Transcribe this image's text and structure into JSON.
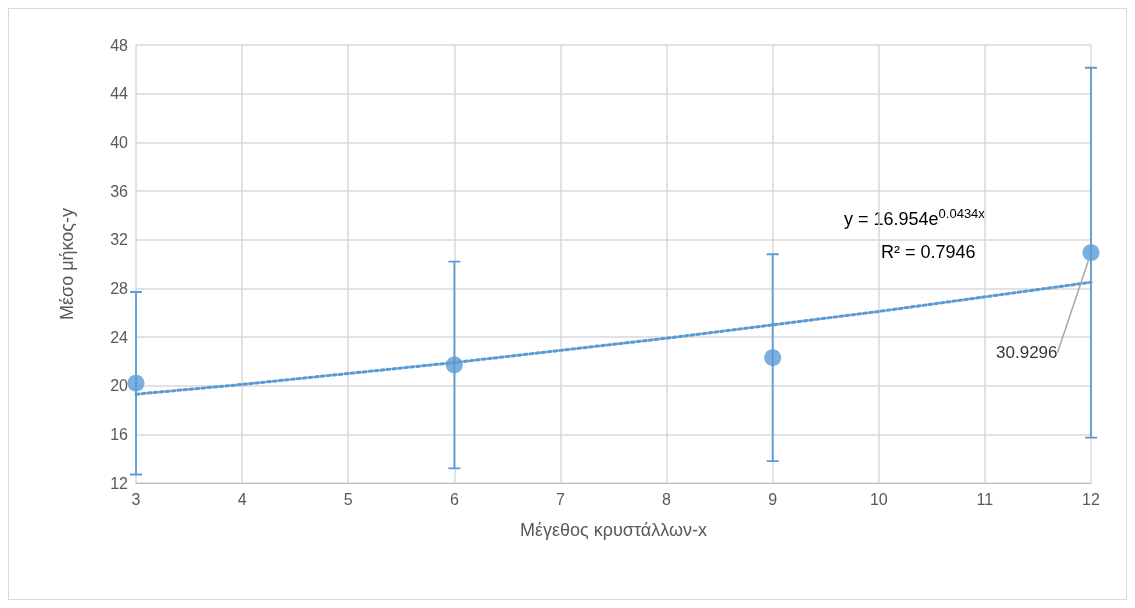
{
  "chart_data": {
    "type": "scatter",
    "xlabel": "Μέγεθος κρυστάλλων-x",
    "ylabel": "Μέσο μήκος-y",
    "xlim": [
      3,
      12
    ],
    "xticks": [
      3,
      4,
      5,
      6,
      7,
      8,
      9,
      10,
      11,
      12
    ],
    "ylim": [
      12,
      48
    ],
    "yticks": [
      12,
      16,
      20,
      24,
      28,
      32,
      36,
      40,
      44,
      48
    ],
    "grid": true,
    "series": [
      {
        "marker": "circle",
        "color": "#5b9bd5",
        "x": [
          3,
          6,
          9,
          12
        ],
        "values": [
          20.2,
          21.7,
          22.3,
          30.9296
        ],
        "errors": [
          7.5,
          8.5,
          8.5,
          15.2
        ],
        "value_labels": [
          null,
          null,
          null,
          "30.9296"
        ]
      },
      {
        "type": "line",
        "marker": "none",
        "color": "#5b9bd5",
        "line_style": "dotted",
        "x": [
          3,
          4,
          5,
          6,
          7,
          8,
          9,
          10,
          11,
          12
        ],
        "values": [
          19.3,
          20.1,
          21.0,
          21.9,
          22.9,
          23.9,
          25.0,
          26.1,
          27.3,
          28.5
        ]
      }
    ],
    "annotations": [
      "y = 16.954e$^{0.0434x}$",
      "R² = 0.7946"
    ]
  }
}
